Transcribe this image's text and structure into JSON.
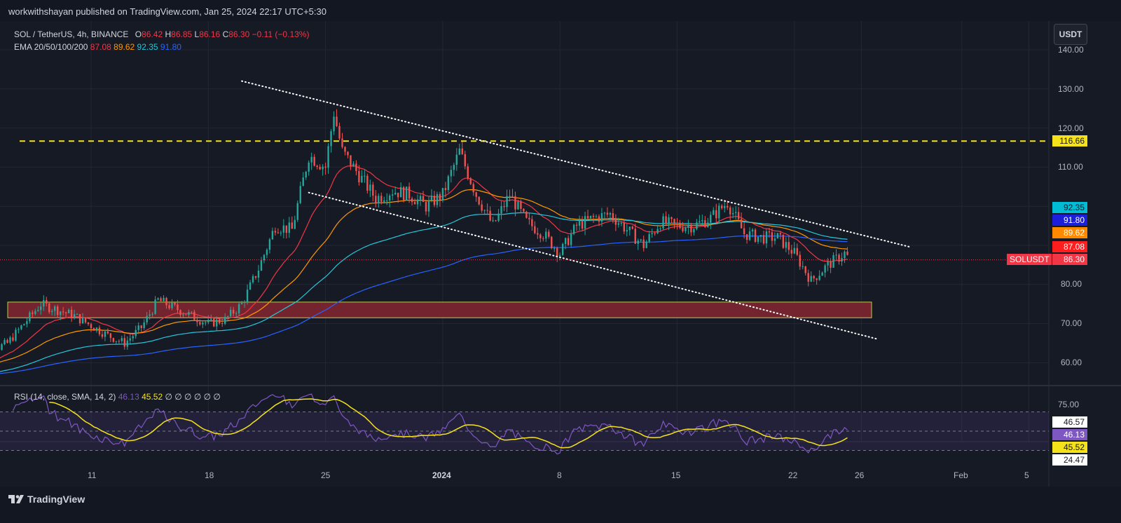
{
  "header": {
    "publisher_line": "workwithshayan published on TradingView.com, Jan 25, 2024 22:17 UTC+5:30"
  },
  "legend": {
    "symbol": "SOL / TetherUS, 4h, BINANCE",
    "o_label": "O",
    "o_value": "86.42",
    "h_label": "H",
    "h_value": "86.85",
    "l_label": "L",
    "l_value": "86.16",
    "c_label": "C",
    "c_value": "86.30",
    "change": "−0.11 (−0.13%)",
    "ema_label": "EMA 20/50/100/200",
    "ema20": "87.08",
    "ema50": "89.62",
    "ema100": "92.35",
    "ema200": "91.80"
  },
  "rsi_legend": {
    "label": "RSI (14, close, SMA, 14, 2)",
    "rsi": "46.13",
    "sma": "45.52",
    "extra": "∅ ∅ ∅ ∅ ∅ ∅"
  },
  "currency_button": "USDT",
  "colors": {
    "bg": "#161a25",
    "up": "#26a69a",
    "down": "#ef5350",
    "ema20": "#f23645",
    "ema50": "#ff9800",
    "ema100": "#26c6da",
    "ema200": "#2962ff",
    "resistance": "#f5e21b",
    "demand_zone": "#7a2530",
    "rsi": "#7e57c2",
    "rsi_sma": "#f5e21b"
  },
  "price_tags": {
    "resistance": "116.66",
    "ema100": "92.35",
    "ema200": "91.80",
    "ema50": "89.62",
    "ema20": "87.08",
    "symbol": "SOLUSDT",
    "last": "86.30"
  },
  "rsi_tags": {
    "upper": "46.57",
    "rsi": "46.13",
    "sma": "45.52",
    "lower": "24.47"
  },
  "footer": {
    "brand": "TradingView"
  },
  "chart_data": {
    "type": "candlestick",
    "symbol": "SOL / TetherUS",
    "timeframe": "4h",
    "exchange": "BINANCE",
    "price_axis": {
      "ticks": [
        "140.00",
        "130.00",
        "120.00",
        "110.00",
        "80.00",
        "70.00",
        "60.00"
      ],
      "range": [
        54,
        145
      ]
    },
    "time_axis": {
      "ticks": [
        "11",
        "18",
        "25",
        "2024",
        "8",
        "15",
        "22",
        "26",
        "Feb",
        "5"
      ]
    },
    "rsi_axis": {
      "ticks": [
        "75.00"
      ],
      "band": [
        30,
        70
      ]
    },
    "horizontal_resistance": 116.66,
    "demand_zone": [
      71.5,
      75.5
    ],
    "upper_trendline": [
      {
        "date": "Dec 20",
        "price": 132
      },
      {
        "date": "Jan 29",
        "price": 89.5
      }
    ],
    "lower_trendline": [
      {
        "date": "Dec 24",
        "price": 103.5
      },
      {
        "date": "Jan 27",
        "price": 66
      }
    ],
    "price_path": [
      {
        "date": "Dec 4",
        "price": 61
      },
      {
        "date": "Dec 6",
        "price": 65
      },
      {
        "date": "Dec 8",
        "price": 75
      },
      {
        "date": "Dec 10",
        "price": 72
      },
      {
        "date": "Dec 12",
        "price": 67
      },
      {
        "date": "Dec 13",
        "price": 65
      },
      {
        "date": "Dec 14",
        "price": 69
      },
      {
        "date": "Dec 15",
        "price": 76
      },
      {
        "date": "Dec 17",
        "price": 72
      },
      {
        "date": "Dec 18",
        "price": 70
      },
      {
        "date": "Dec 19",
        "price": 71
      },
      {
        "date": "Dec 20",
        "price": 75
      },
      {
        "date": "Dec 21",
        "price": 84
      },
      {
        "date": "Dec 22",
        "price": 95
      },
      {
        "date": "Dec 23",
        "price": 94
      },
      {
        "date": "Dec 24",
        "price": 113
      },
      {
        "date": "Dec 25",
        "price": 110
      },
      {
        "date": "Dec 25 12h",
        "price": 124
      },
      {
        "date": "Dec 26",
        "price": 114
      },
      {
        "date": "Dec 27",
        "price": 108
      },
      {
        "date": "Dec 28",
        "price": 102
      },
      {
        "date": "Dec 29",
        "price": 104
      },
      {
        "date": "Dec 30",
        "price": 103
      },
      {
        "date": "Dec 31",
        "price": 100
      },
      {
        "date": "Jan 1",
        "price": 103
      },
      {
        "date": "Jan 2",
        "price": 114
      },
      {
        "date": "Jan 3",
        "price": 103
      },
      {
        "date": "Jan 4",
        "price": 95
      },
      {
        "date": "Jan 5",
        "price": 103
      },
      {
        "date": "Jan 6",
        "price": 96
      },
      {
        "date": "Jan 7",
        "price": 93
      },
      {
        "date": "Jan 8",
        "price": 88
      },
      {
        "date": "Jan 9",
        "price": 95
      },
      {
        "date": "Jan 10",
        "price": 97
      },
      {
        "date": "Jan 11",
        "price": 98
      },
      {
        "date": "Jan 12",
        "price": 94
      },
      {
        "date": "Jan 13",
        "price": 90
      },
      {
        "date": "Jan 14",
        "price": 96
      },
      {
        "date": "Jan 15",
        "price": 95
      },
      {
        "date": "Jan 16",
        "price": 95
      },
      {
        "date": "Jan 17",
        "price": 97
      },
      {
        "date": "Jan 18",
        "price": 101
      },
      {
        "date": "Jan 19",
        "price": 93
      },
      {
        "date": "Jan 20",
        "price": 92
      },
      {
        "date": "Jan 21",
        "price": 92
      },
      {
        "date": "Jan 22",
        "price": 88
      },
      {
        "date": "Jan 23",
        "price": 81
      },
      {
        "date": "Jan 24",
        "price": 85
      },
      {
        "date": "Jan 25",
        "price": 88
      },
      {
        "date": "Jan 25 close",
        "price": 86.3
      }
    ],
    "ema": [
      {
        "name": "EMA 20",
        "last": 87.08
      },
      {
        "name": "EMA 50",
        "last": 89.62
      },
      {
        "name": "EMA 100",
        "last": 92.35
      },
      {
        "name": "EMA 200",
        "last": 91.8
      }
    ],
    "rsi": {
      "last": 46.13,
      "sma_last": 45.52
    }
  }
}
